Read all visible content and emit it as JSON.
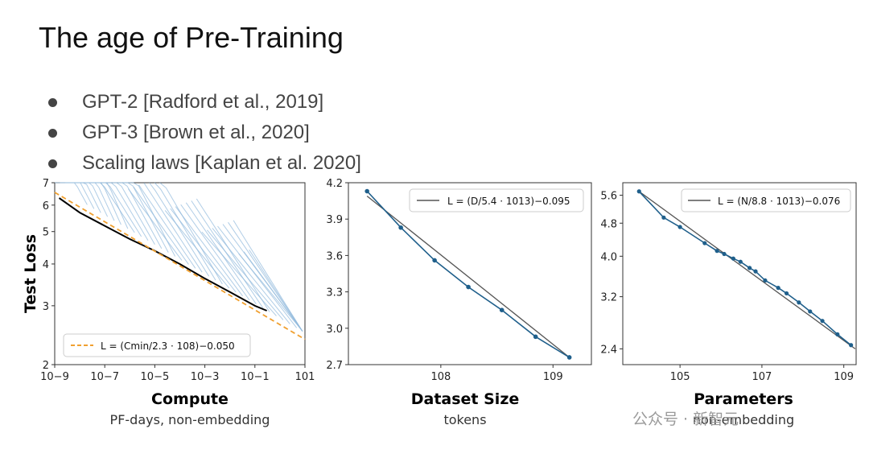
{
  "slide": {
    "title": "The age of Pre-Training",
    "bullets": [
      "GPT-2 [Radford et al., 2019]",
      "GPT-3 [Brown et al., 2020]",
      "Scaling laws [Kaplan et al. 2020]"
    ]
  },
  "watermark": "公众号 · 新智元",
  "chart_data": [
    {
      "type": "line",
      "xlabel": "Compute",
      "xsublabel": "PF-days, non-embedding",
      "ylabel": "Test Loss",
      "xscale": "log",
      "yscale": "log",
      "xlim": [
        1e-09,
        10
      ],
      "ylim": [
        2,
        7
      ],
      "x_ticks": [
        "10−9",
        "10−7",
        "10−5",
        "10−3",
        "10−1",
        "101"
      ],
      "y_ticks": [
        "2",
        "3",
        "4",
        "5",
        "6",
        "7"
      ],
      "legend": {
        "position": "bottom-left",
        "entries": [
          "L = (Cmin/2.3 · 108)−0.050"
        ]
      },
      "series": [
        {
          "fit": "power law",
          "x": [
            1e-09,
            10
          ],
          "y": [
            6.55,
            2.38
          ],
          "style": "dashed",
          "color": "#f0a030"
        },
        {
          "frontier": true,
          "x": [
            1.5e-09,
            1e-08,
            1e-07,
            1e-06,
            1e-05,
            0.0001,
            0.001,
            0.01,
            0.1,
            0.3
          ],
          "y": [
            6.3,
            5.7,
            5.2,
            4.75,
            4.38,
            4.0,
            3.62,
            3.3,
            3.0,
            2.9
          ],
          "color": "#000000"
        }
      ],
      "training_curves_color": "#8fb8dc"
    },
    {
      "type": "line",
      "xlabel": "Dataset Size",
      "xsublabel": "tokens",
      "xscale": "log",
      "xlim": [
        15000000.0,
        2200000000.0
      ],
      "ylim": [
        2.7,
        4.2
      ],
      "x_ticks": [
        "108",
        "109"
      ],
      "y_ticks": [
        "2.7",
        "3.0",
        "3.3",
        "3.6",
        "3.9",
        "4.2"
      ],
      "legend": {
        "position": "top-right",
        "entries": [
          "L = (D/5.4 · 1013)−0.095"
        ]
      },
      "series": [
        {
          "data": true,
          "x": [
            22000000.0,
            44000000.0,
            88000000.0,
            176000000.0,
            350000000.0,
            700000000.0,
            1400000000.0
          ],
          "y": [
            4.13,
            3.83,
            3.56,
            3.34,
            3.15,
            2.93,
            2.76
          ],
          "color": "#1f5f8b"
        }
      ],
      "fit_color": "#555555"
    },
    {
      "type": "line",
      "xlabel": "Parameters",
      "xsublabel": "non-embedding",
      "xscale": "log",
      "xlim": [
        4000.0,
        2000000000.0
      ],
      "ylim": [
        2.2,
        6.0
      ],
      "x_ticks": [
        "105",
        "107",
        "109"
      ],
      "y_ticks": [
        "2.4",
        "3.2",
        "4.0",
        "4.8",
        "5.6"
      ],
      "legend": {
        "position": "top-right",
        "entries": [
          "L = (N/8.8 · 1013)−0.076"
        ]
      },
      "series": [
        {
          "data": true,
          "x": [
            10000.0,
            40000.0,
            100000.0,
            400000.0,
            800000.0,
            1200000.0,
            2000000.0,
            3000000.0,
            5000000.0,
            7000000.0,
            12000000.0,
            25000000.0,
            40000000.0,
            80000000.0,
            150000000.0,
            300000000.0,
            700000000.0,
            1500000000.0
          ],
          "y": [
            5.72,
            4.95,
            4.7,
            4.3,
            4.12,
            4.05,
            3.95,
            3.88,
            3.75,
            3.68,
            3.5,
            3.36,
            3.26,
            3.1,
            2.95,
            2.8,
            2.6,
            2.45
          ],
          "color": "#1f5f8b"
        }
      ],
      "fit_color": "#555555"
    }
  ]
}
